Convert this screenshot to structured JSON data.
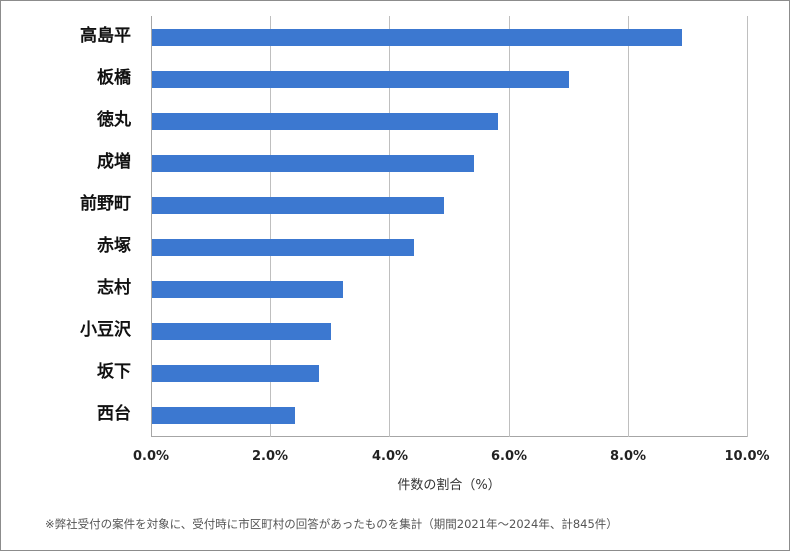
{
  "chart_data": {
    "type": "bar",
    "orientation": "horizontal",
    "categories": [
      "高島平",
      "板橋",
      "徳丸",
      "成増",
      "前野町",
      "赤塚",
      "志村",
      "小豆沢",
      "坂下",
      "西台"
    ],
    "values": [
      8.9,
      7.0,
      5.8,
      5.4,
      4.9,
      4.4,
      3.2,
      3.0,
      2.8,
      2.4
    ],
    "title": "",
    "xlabel": "件数の割合（%）",
    "ylabel": "",
    "xlim": [
      0,
      10
    ],
    "xticks": [
      "0.0%",
      "2.0%",
      "4.0%",
      "6.0%",
      "8.0%",
      "10.0%"
    ],
    "grid": "vertical",
    "legend": "none",
    "bar_color": "#3c78d0",
    "footnote": "※弊社受付の案件を対象に、受付時に市区町村の回答があったものを集計（期間2021年～2024年、計845件）"
  },
  "labels": {
    "cat0": "高島平",
    "cat1": "板橋",
    "cat2": "徳丸",
    "cat3": "成増",
    "cat4": "前野町",
    "cat5": "赤塚",
    "cat6": "志村",
    "cat7": "小豆沢",
    "cat8": "坂下",
    "cat9": "西台",
    "tick0": "0.0%",
    "tick1": "2.0%",
    "tick2": "4.0%",
    "tick3": "6.0%",
    "tick4": "8.0%",
    "tick5": "10.0%",
    "xlabel": "件数の割合（%）",
    "footnote": "※弊社受付の案件を対象に、受付時に市区町村の回答があったものを集計（期間2021年～2024年、計845件）"
  }
}
